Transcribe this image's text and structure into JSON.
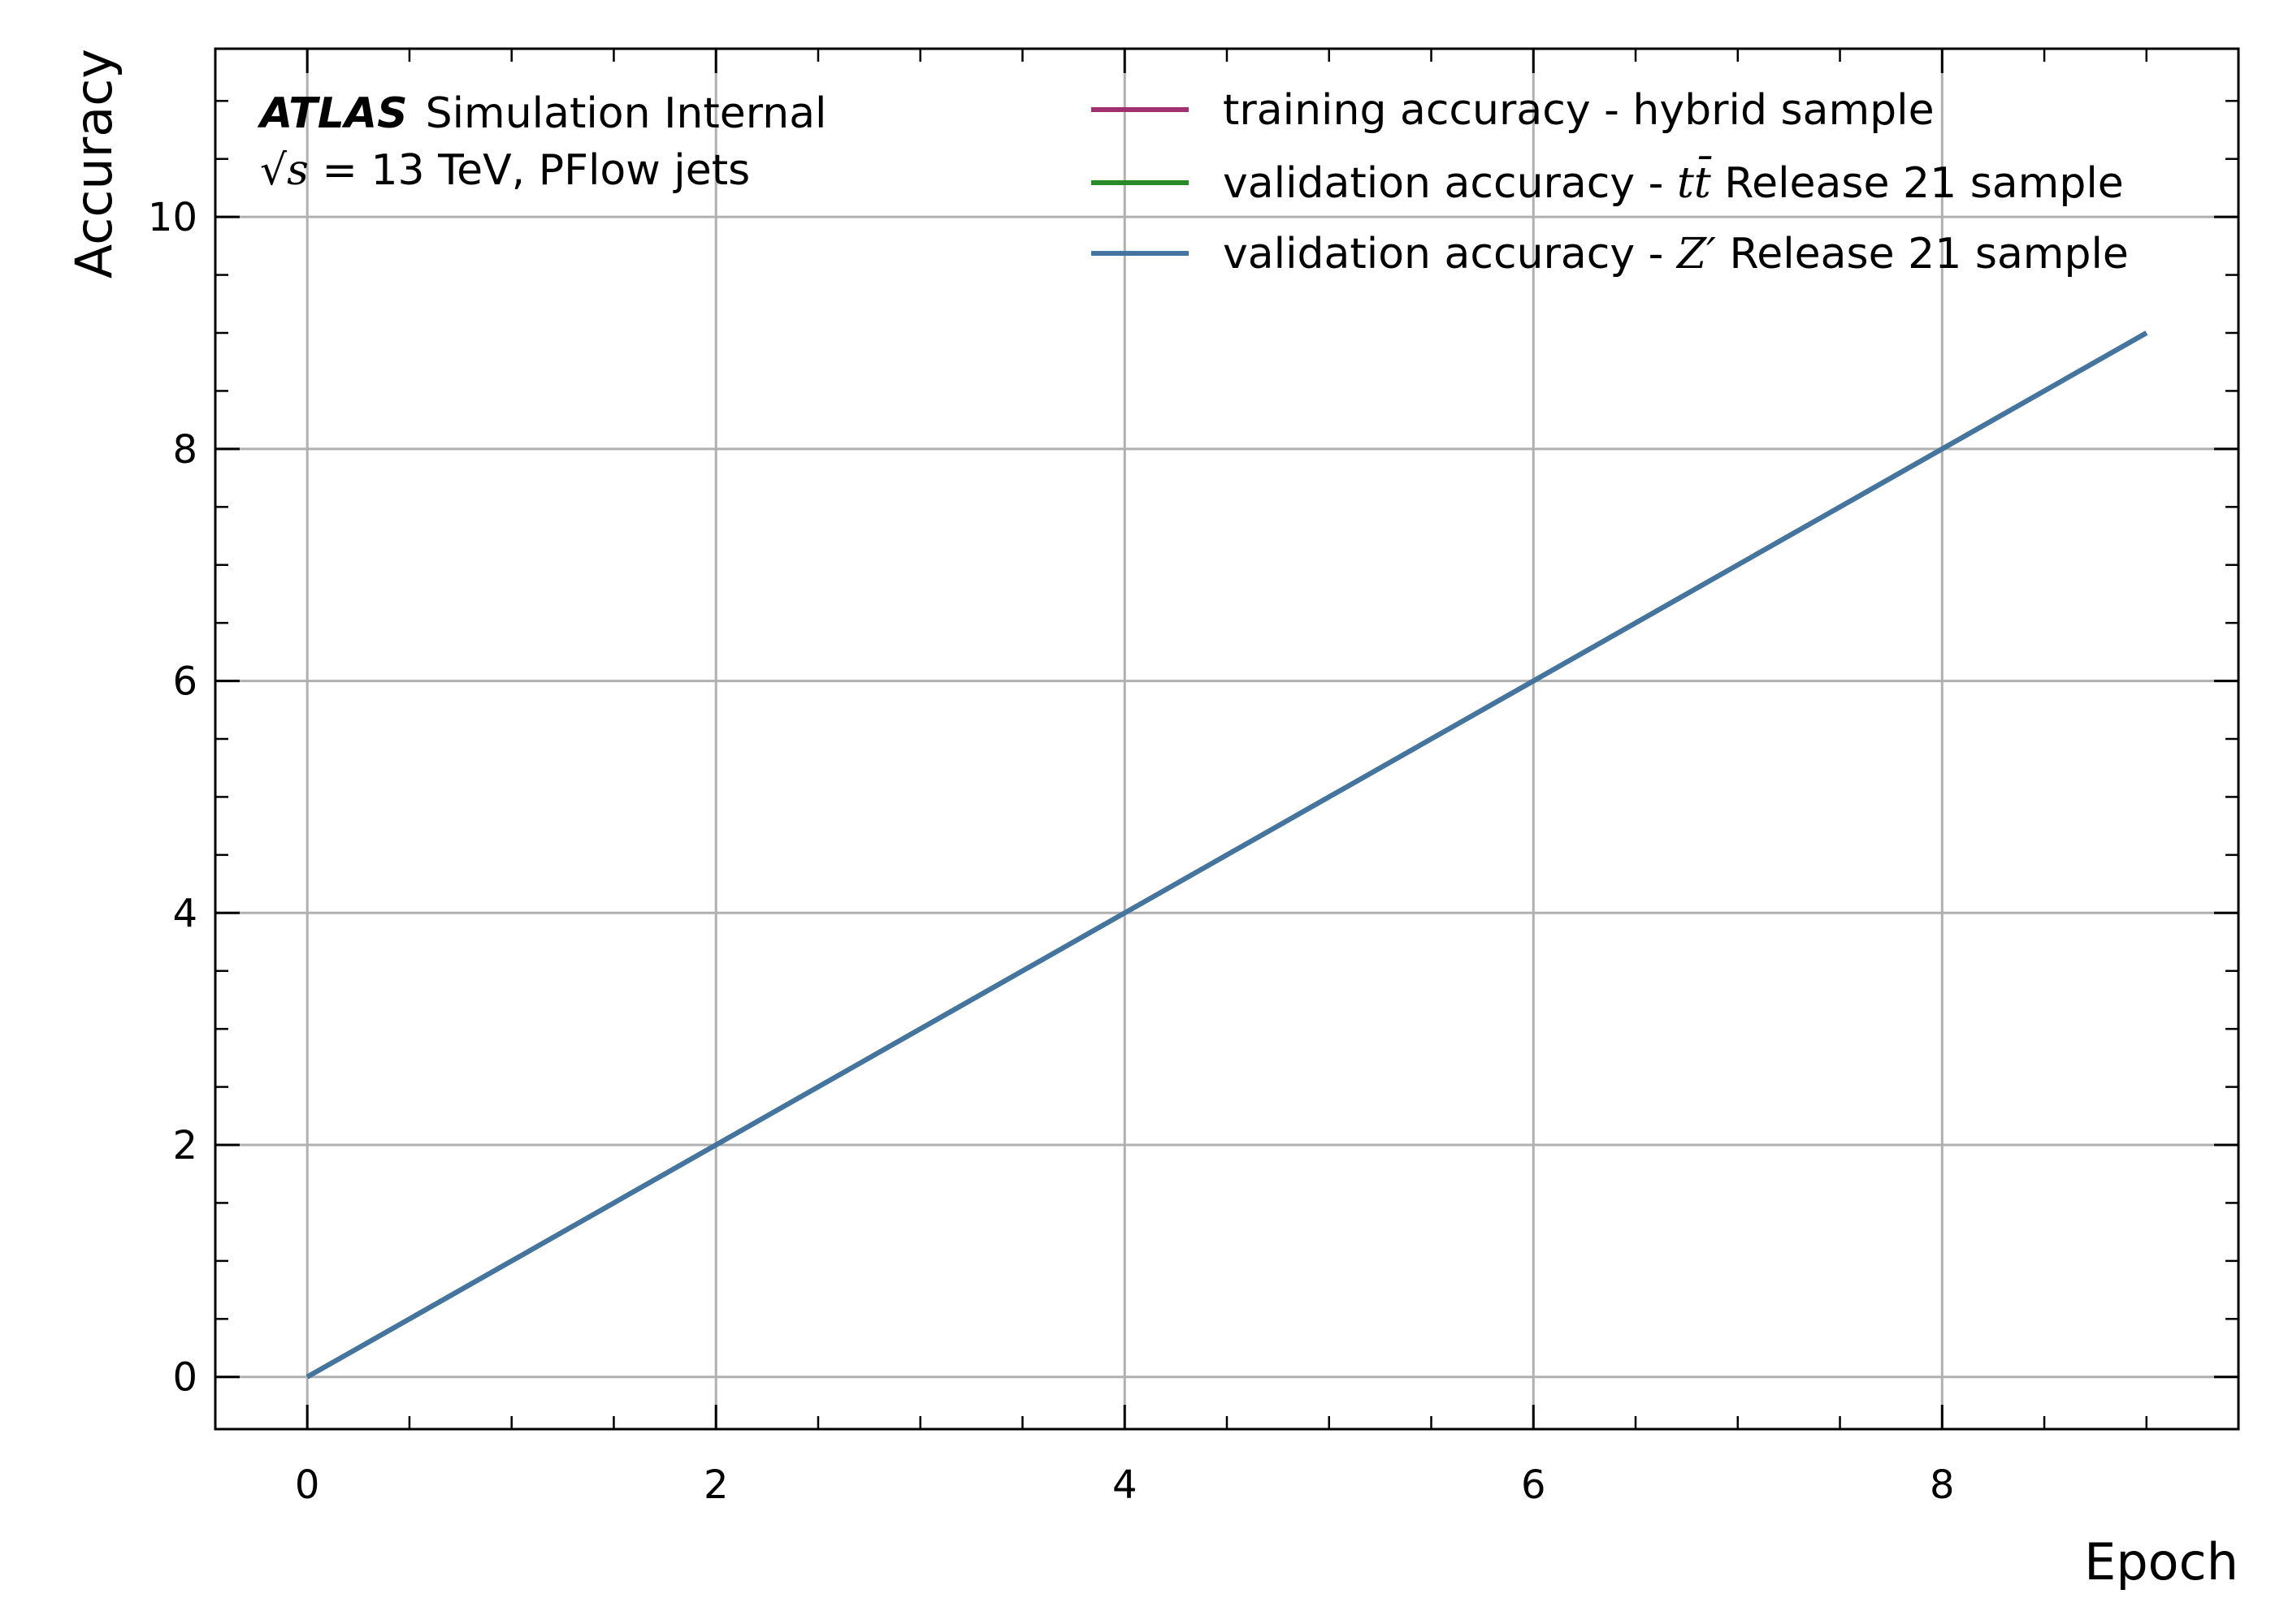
{
  "chart_data": {
    "type": "line",
    "title": "",
    "xlabel": "Epoch",
    "ylabel": "Accuracy",
    "xlim": [
      -0.45,
      9.45
    ],
    "ylim": [
      -0.45,
      11.45
    ],
    "xticks": [
      0,
      2,
      4,
      6,
      8
    ],
    "yticks": [
      0,
      2,
      4,
      6,
      8,
      10
    ],
    "grid": true,
    "legend_position": "top-right",
    "annotation": {
      "brand": "ATLAS",
      "line1_suffix": "Simulation Internal",
      "line2_prefix": "√",
      "line2_var": "s",
      "line2_suffix": " = 13 TeV, PFlow jets"
    },
    "series": [
      {
        "name_prefix": "training accuracy - hybrid sample",
        "name_math": "",
        "name_suffix": "",
        "color": "#a0306e",
        "x": [
          0,
          1,
          2,
          3,
          4,
          5,
          6,
          7,
          8,
          9
        ],
        "y": [
          0,
          1,
          2,
          3,
          4,
          5,
          6,
          7,
          8,
          9
        ]
      },
      {
        "name_prefix": "validation accuracy - ",
        "name_math": "tt̄",
        "name_suffix": " Release 21 sample",
        "color": "#2a8a2a",
        "x": [
          0,
          1,
          2,
          3,
          4,
          5,
          6,
          7,
          8,
          9
        ],
        "y": [
          0,
          1,
          2,
          3,
          4,
          5,
          6,
          7,
          8,
          9
        ]
      },
      {
        "name_prefix": "validation accuracy - ",
        "name_math": "Z′",
        "name_suffix": " Release 21 sample",
        "color": "#4474a0",
        "x": [
          0,
          1,
          2,
          3,
          4,
          5,
          6,
          7,
          8,
          9
        ],
        "y": [
          0,
          1,
          2,
          3,
          4,
          5,
          6,
          7,
          8,
          9
        ]
      }
    ]
  }
}
